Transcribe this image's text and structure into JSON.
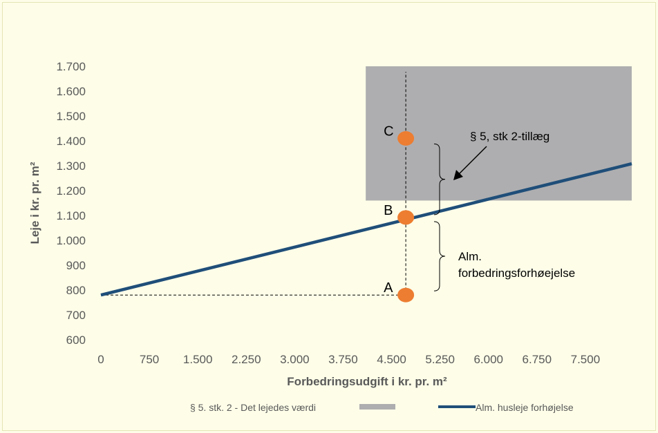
{
  "chart_data": {
    "type": "line",
    "title": "",
    "xlabel": "Forbedringsudgift i kr. pr. m²",
    "ylabel": "Leje i kr. pr. m²",
    "xlim": [
      0,
      8250
    ],
    "ylim": [
      600,
      1700
    ],
    "x_ticks": [
      "0",
      "750",
      "1.500",
      "2.250",
      "3.000",
      "3.750",
      "4.500",
      "5.250",
      "6.000",
      "6.750",
      "7.500"
    ],
    "x_tick_values": [
      0,
      750,
      1500,
      2250,
      3000,
      3750,
      4500,
      5250,
      6000,
      6750,
      7500
    ],
    "y_ticks": [
      "600",
      "700",
      "800",
      "900",
      "1.000",
      "1.100",
      "1.200",
      "1.300",
      "1.400",
      "1.500",
      "1.600",
      "1.700"
    ],
    "y_tick_values": [
      600,
      700,
      800,
      900,
      1000,
      1100,
      1200,
      1300,
      1400,
      1500,
      1600,
      1700
    ],
    "grid": false,
    "legend_position": "bottom",
    "series": [
      {
        "name": "Alm. husleje forhøjelse",
        "type": "line",
        "color": "#1f4e79",
        "x": [
          0,
          8250
        ],
        "y": [
          780,
          1308
        ]
      }
    ],
    "area": {
      "name": "§ 5. stk. 2 - Det lejedes værdi",
      "color": "#aeaeb0",
      "x_range": [
        4100,
        8250
      ],
      "y_range": [
        1160,
        1700
      ]
    },
    "points": [
      {
        "label": "A",
        "x": 4720,
        "y": 780
      },
      {
        "label": "B",
        "x": 4720,
        "y": 1092
      },
      {
        "label": "C",
        "x": 4720,
        "y": 1410
      }
    ],
    "point_color": "#ed7d31",
    "annotations": {
      "bracket_upper": "§ 5, stk 2-tillæg",
      "bracket_lower_line1": "Alm.",
      "bracket_lower_line2": "forbedringsforhøejelse"
    }
  }
}
